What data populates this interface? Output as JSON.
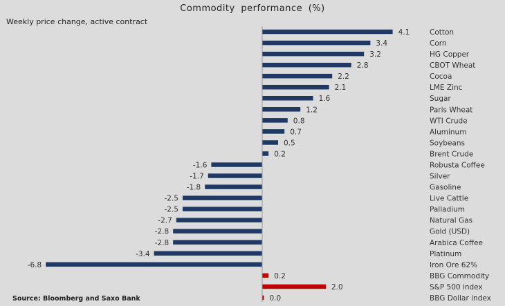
{
  "chart_data": {
    "type": "bar",
    "orientation": "horizontal",
    "title": "Commodity  performance  (%)",
    "subtitle": "Weekly price change, active contract",
    "source": "Source: Bloomberg and Saxo Bank",
    "xlim": [
      -6.8,
      4.1
    ],
    "grid": false,
    "colors": {
      "commodity": "#1f3864",
      "index": "#c00000",
      "axis": "#999999"
    },
    "categories": [
      "Cotton",
      "Corn",
      "HG Copper",
      "CBOT Wheat",
      "Cocoa",
      "LME Zinc",
      "Sugar",
      "Paris Wheat",
      "WTI Crude",
      "Aluminum",
      "Soybeans",
      "Brent Crude",
      "Robusta Coffee",
      "Silver",
      "Gasoline",
      "Live Cattle",
      "Palladium",
      "Natural Gas",
      "Gold (USD)",
      "Arabica Coffee",
      "Platinum",
      "Iron Ore 62%",
      "BBG Commodity",
      "S&P 500 index",
      "BBG Dollar index"
    ],
    "values": [
      4.1,
      3.4,
      3.2,
      2.8,
      2.2,
      2.1,
      1.6,
      1.2,
      0.8,
      0.7,
      0.5,
      0.2,
      -1.6,
      -1.7,
      -1.8,
      -2.5,
      -2.5,
      -2.7,
      -2.8,
      -2.8,
      -3.4,
      -6.8,
      0.2,
      2.0,
      0.0
    ],
    "labels": [
      "4.1",
      "3.4",
      "3.2",
      "2.8",
      "2.2",
      "2.1",
      "1.6",
      "1.2",
      "0.8",
      "0.7",
      "0.5",
      "0.2",
      "-1.6",
      "-1.7",
      "-1.8",
      "-2.5",
      "-2.5",
      "-2.7",
      "-2.8",
      "-2.8",
      "-3.4",
      "-6.8",
      "0.2",
      "2.0",
      "0.0"
    ],
    "series_group": [
      "commodity",
      "commodity",
      "commodity",
      "commodity",
      "commodity",
      "commodity",
      "commodity",
      "commodity",
      "commodity",
      "commodity",
      "commodity",
      "commodity",
      "commodity",
      "commodity",
      "commodity",
      "commodity",
      "commodity",
      "commodity",
      "commodity",
      "commodity",
      "commodity",
      "commodity",
      "index",
      "index",
      "index"
    ]
  }
}
